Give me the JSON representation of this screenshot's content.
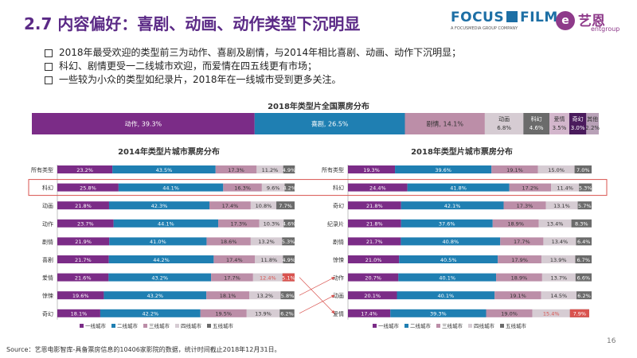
{
  "title": "2.7 内容偏好：喜剧、动画、动作类型下沉明显",
  "logo": {
    "focus": "FOCUS",
    "film": "FILM",
    "focus_sub": "A FOCUSMEDIA GROUP COMPANY",
    "mark": "e",
    "ent": "艺恩",
    "ent_sub": "entgroup"
  },
  "bullets": [
    "2018年最受欢迎的类型前三为动作、喜剧及剧情，与2014年相比喜剧、动画、动作下沉明显；",
    "科幻、剧情更受一二线城市欢迎，而爱情在四五线更有市场；",
    "一些较为小众的类型如纪录片，2018年在一线城市受到更多关注。"
  ],
  "colors": {
    "tier1": "#7b2c87",
    "tier2": "#1f7fb2",
    "tier3": "#bc8ea8",
    "tier4": "#d6ccd3",
    "tier5": "#6b6b6b",
    "highlight": "#d9534f"
  },
  "chart_data": [
    {
      "type": "bar",
      "title": "2018年类型片全国票房分布",
      "categories": [
        "动作",
        "喜剧",
        "剧情",
        "动画",
        "科幻",
        "爱情",
        "奇幻",
        "其他"
      ],
      "values": [
        39.3,
        26.5,
        14.1,
        6.8,
        4.6,
        3.5,
        3.0,
        2.2
      ],
      "labels": [
        "动作, 39.3%",
        "喜剧, 26.5%",
        "剧情, 14.1%",
        "动画 6.8%",
        "科幻 4.6%",
        "爱情 3.5%",
        "奇幻 3.0%",
        "其他 2.2%"
      ],
      "colors": [
        "#7b2c87",
        "#1f7fb2",
        "#bc8ea8",
        "#d6ccd3",
        "#6b6b6b",
        "#d3b6cc",
        "#4a1b5c",
        "#b8a1b7"
      ]
    },
    {
      "type": "bar",
      "title": "2014年类型片城市票房分布",
      "stacked": true,
      "categories": [
        "所有类型",
        "科幻",
        "动画",
        "动作",
        "剧情",
        "喜剧",
        "爱情",
        "惊悚",
        "奇幻"
      ],
      "series": [
        {
          "name": "一线城市",
          "values": [
            23.2,
            25.8,
            21.8,
            23.7,
            21.9,
            21.7,
            21.6,
            19.6,
            18.1
          ]
        },
        {
          "name": "二线城市",
          "values": [
            43.5,
            44.1,
            42.3,
            44.1,
            41.0,
            44.2,
            43.2,
            43.2,
            42.2
          ]
        },
        {
          "name": "三线城市",
          "values": [
            17.3,
            16.3,
            17.4,
            17.3,
            18.6,
            17.4,
            17.7,
            18.1,
            19.5
          ]
        },
        {
          "name": "四线城市",
          "values": [
            11.2,
            9.6,
            10.8,
            10.3,
            13.2,
            11.8,
            12.4,
            13.2,
            13.9
          ]
        },
        {
          "name": "五线城市",
          "values": [
            4.9,
            4.2,
            7.7,
            4.6,
            5.3,
            4.9,
            5.1,
            5.8,
            6.2
          ]
        }
      ],
      "highlight_row": "科幻",
      "red_labels": [
        {
          "category": "爱情",
          "series": "四线城市"
        },
        {
          "category": "爱情",
          "series": "五线城市"
        }
      ]
    },
    {
      "type": "bar",
      "title": "2018年类型片城市票房分布",
      "stacked": true,
      "categories": [
        "所有类型",
        "科幻",
        "奇幻",
        "纪录片",
        "剧情",
        "惊悚",
        "动作",
        "动画",
        "爱情"
      ],
      "series": [
        {
          "name": "一线城市",
          "values": [
            19.3,
            24.4,
            21.8,
            21.8,
            21.7,
            21.0,
            20.7,
            20.1,
            17.4
          ]
        },
        {
          "name": "二线城市",
          "values": [
            39.6,
            41.8,
            42.1,
            37.6,
            40.8,
            40.5,
            40.1,
            40.1,
            39.3
          ]
        },
        {
          "name": "三线城市",
          "values": [
            19.1,
            17.2,
            17.3,
            18.9,
            17.7,
            17.9,
            18.9,
            19.1,
            19.0
          ]
        },
        {
          "name": "四线城市",
          "values": [
            15.0,
            11.4,
            13.1,
            13.4,
            13.4,
            13.9,
            13.7,
            14.5,
            15.4
          ]
        },
        {
          "name": "五线城市",
          "values": [
            7.0,
            5.3,
            5.7,
            8.3,
            6.4,
            6.7,
            6.6,
            6.2,
            7.9
          ]
        }
      ],
      "highlight_row": "科幻",
      "red_labels": [
        {
          "category": "爱情",
          "series": "四线城市"
        },
        {
          "category": "爱情",
          "series": "五线城市"
        }
      ]
    }
  ],
  "arrows": [
    {
      "from": "爱情",
      "to": "爱情"
    },
    {
      "from": "惊悚",
      "to": "动作"
    },
    {
      "from": "奇幻",
      "to": "动画"
    }
  ],
  "source": "Source：艺恩电影智库-具备票房信息的10406家影院的数据，统计时间截止2018年12月31日。",
  "page_number": "16"
}
